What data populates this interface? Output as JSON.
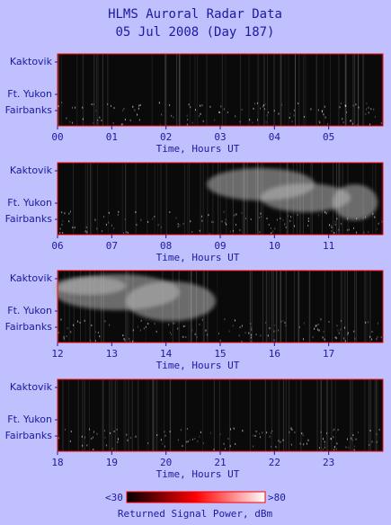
{
  "header": {
    "title": "HLMS Auroral Radar Data",
    "subtitle": "05 Jul 2008 (Day 187)"
  },
  "chart_data": [
    {
      "type": "heatmap",
      "xlabel": "Time, Hours UT",
      "xlim": [
        0,
        6
      ],
      "xticks": [
        {
          "value": 0,
          "label": "00"
        },
        {
          "value": 1,
          "label": "01"
        },
        {
          "value": 2,
          "label": "02"
        },
        {
          "value": 3,
          "label": "03"
        },
        {
          "value": 4,
          "label": "04"
        },
        {
          "value": 5,
          "label": "05"
        }
      ],
      "ylabels": [
        "Kaktovik",
        "Ft. Yukon",
        "Fairbanks"
      ]
    },
    {
      "type": "heatmap",
      "xlabel": "Time, Hours UT",
      "xlim": [
        6,
        12
      ],
      "xticks": [
        {
          "value": 6,
          "label": "06"
        },
        {
          "value": 7,
          "label": "07"
        },
        {
          "value": 8,
          "label": "08"
        },
        {
          "value": 9,
          "label": "09"
        },
        10,
        11
      ],
      "ylabels": [
        "Kaktovik",
        "Ft. Yukon",
        "Fairbanks"
      ]
    },
    {
      "type": "heatmap",
      "xlabel": "Time, Hours UT",
      "xlim": [
        12,
        18
      ],
      "xticks": [
        12,
        13,
        14,
        15,
        16,
        17
      ],
      "ylabels": [
        "Kaktovik",
        "Ft. Yukon",
        "Fairbanks"
      ]
    },
    {
      "type": "heatmap",
      "xlabel": "Time, Hours UT",
      "xlim": [
        18,
        24
      ],
      "xticks": [
        18,
        19,
        20,
        21,
        22,
        23
      ],
      "ylabels": [
        "Kaktovik",
        "Ft. Yukon",
        "Fairbanks"
      ]
    }
  ],
  "colorbar": {
    "label": "Returned Signal Power, dBm",
    "range": [
      {
        "value": 30,
        "label": "<30"
      },
      {
        "value": 80,
        "label": ">80"
      }
    ],
    "colors": [
      "#000000",
      "#ff0000",
      "#ffffff"
    ]
  }
}
